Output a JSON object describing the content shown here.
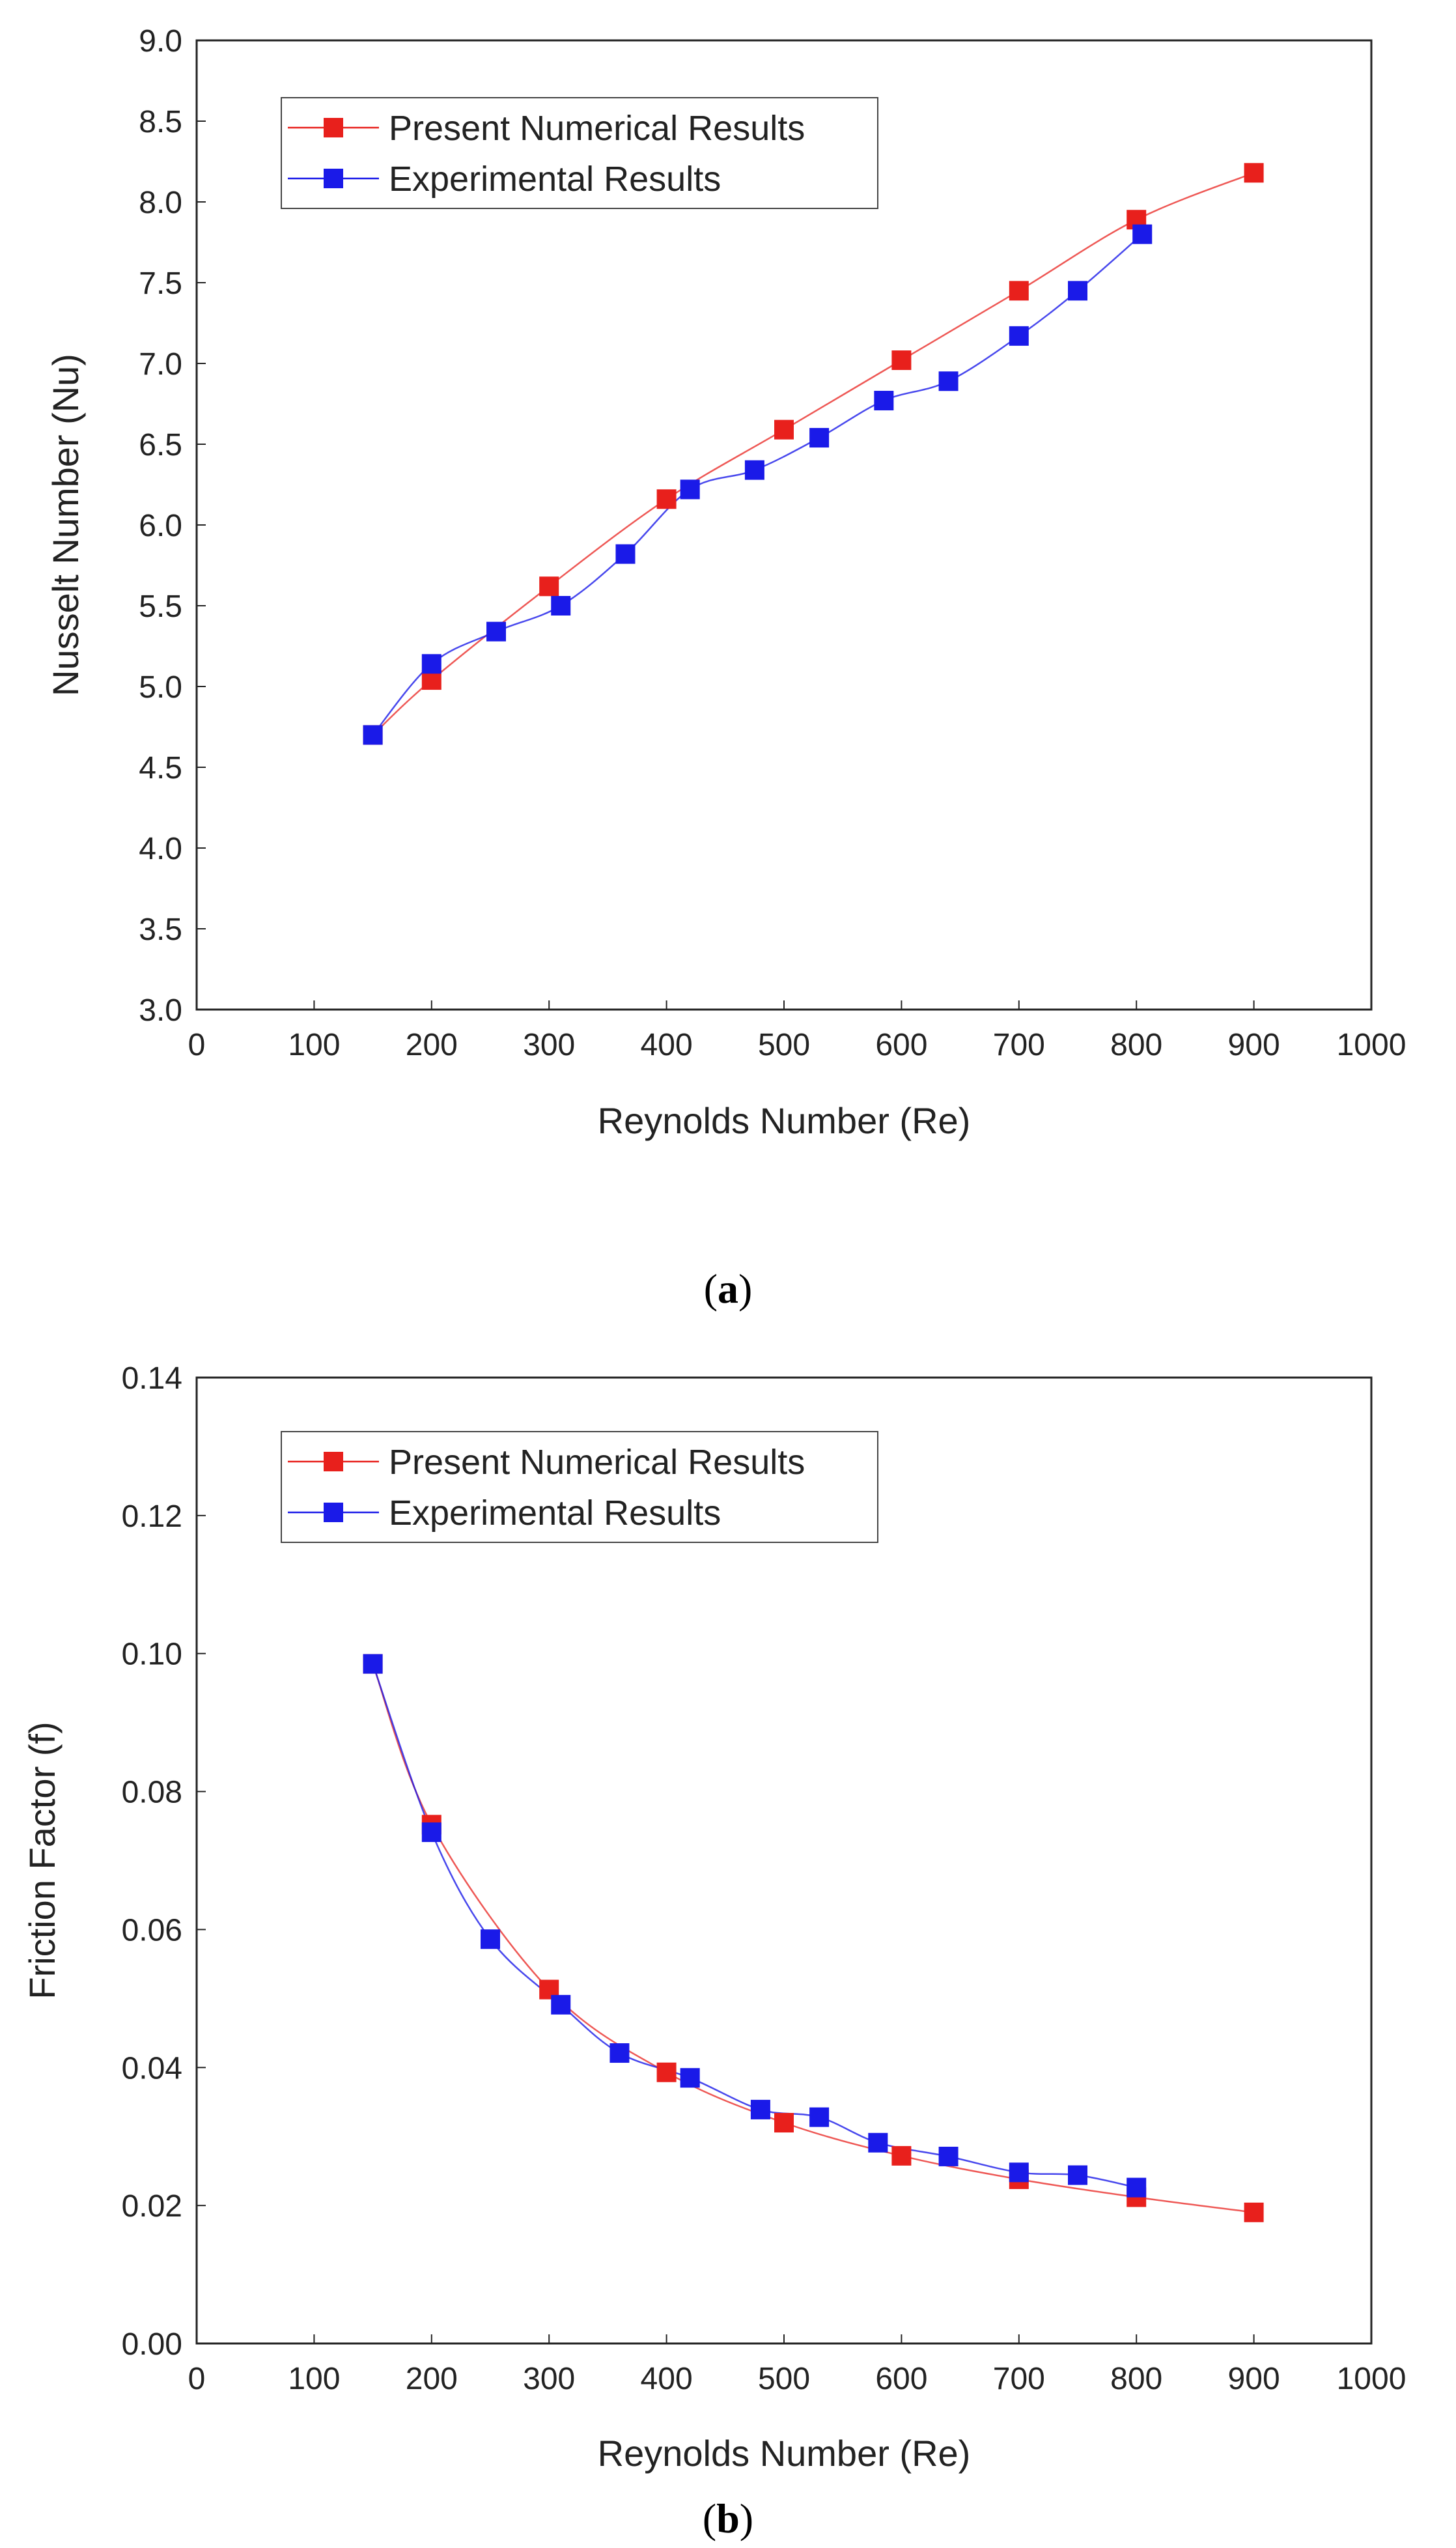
{
  "chart_data": [
    {
      "type": "line",
      "panel": "a",
      "xlabel": "Reynolds Number (Re)",
      "ylabel": "Nusselt Number (Nu)",
      "xlim": [
        0,
        1000
      ],
      "ylim": [
        3.0,
        9.0
      ],
      "xticks": [
        "0",
        "100",
        "200",
        "300",
        "400",
        "500",
        "600",
        "700",
        "800",
        "900",
        "1000"
      ],
      "yticks": [
        "3.0",
        "3.5",
        "4.0",
        "4.5",
        "5.0",
        "5.5",
        "6.0",
        "6.5",
        "7.0",
        "7.5",
        "8.0",
        "8.5",
        "9.0"
      ],
      "legend_position": "top-left",
      "series": [
        {
          "name": "Present Numerical Results",
          "color": "#e8201c",
          "x": [
            150,
            200,
            300,
            400,
            500,
            600,
            700,
            800,
            900
          ],
          "y": [
            4.7,
            5.04,
            5.62,
            6.16,
            6.59,
            7.02,
            7.45,
            7.89,
            8.18
          ]
        },
        {
          "name": "Experimental Results",
          "color": "#1a1ae8",
          "x": [
            150,
            200,
            255,
            310,
            365,
            420,
            475,
            530,
            585,
            640,
            700,
            750,
            805
          ],
          "y": [
            4.7,
            5.14,
            5.34,
            5.5,
            5.82,
            6.22,
            6.34,
            6.54,
            6.77,
            6.89,
            7.17,
            7.45,
            7.8
          ]
        }
      ]
    },
    {
      "type": "line",
      "panel": "b",
      "xlabel": "Reynolds Number (Re)",
      "ylabel": "Friction Factor (f)",
      "xlim": [
        0,
        1000
      ],
      "ylim": [
        0.0,
        0.14
      ],
      "xticks": [
        "0",
        "100",
        "200",
        "300",
        "400",
        "500",
        "600",
        "700",
        "800",
        "900",
        "1000"
      ],
      "yticks": [
        "0.00",
        "0.02",
        "0.04",
        "0.06",
        "0.08",
        "0.10",
        "0.12",
        "0.14"
      ],
      "legend_position": "top-left",
      "series": [
        {
          "name": "Present Numerical Results",
          "color": "#e8201c",
          "x": [
            150,
            200,
            300,
            400,
            500,
            600,
            700,
            800,
            900
          ],
          "y": [
            0.0985,
            0.0752,
            0.0513,
            0.0393,
            0.032,
            0.0272,
            0.0238,
            0.0212,
            0.019
          ]
        },
        {
          "name": "Experimental Results",
          "color": "#1a1ae8",
          "x": [
            150,
            200,
            250,
            310,
            360,
            420,
            480,
            530,
            580,
            640,
            700,
            750,
            800
          ],
          "y": [
            0.0985,
            0.0741,
            0.0586,
            0.0491,
            0.0421,
            0.0385,
            0.0339,
            0.0328,
            0.0291,
            0.0271,
            0.0248,
            0.0244,
            0.0226
          ]
        }
      ]
    }
  ],
  "captions": {
    "a": {
      "open": "(",
      "letter": "a",
      "close": ")"
    },
    "b": {
      "open": "(",
      "letter": "b",
      "close": ")"
    }
  }
}
